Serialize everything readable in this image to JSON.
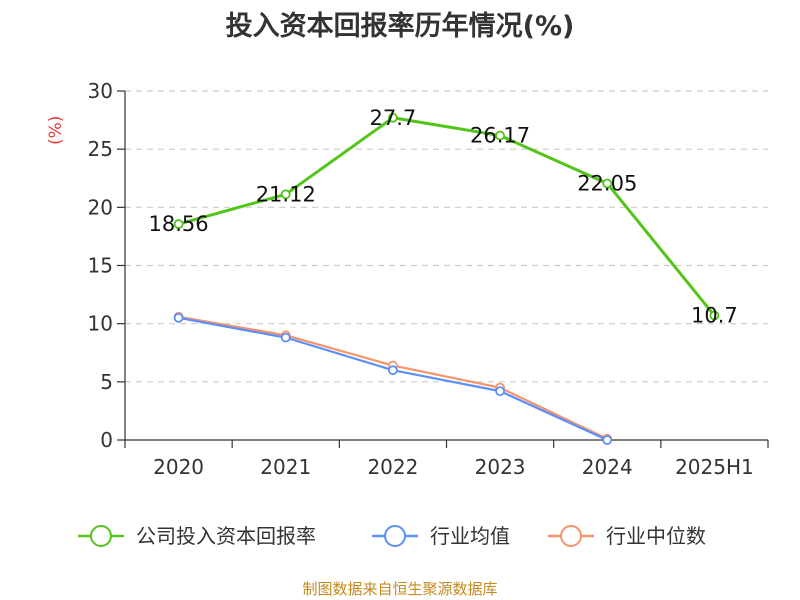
{
  "title": "投入资本回报率历年情况(%)",
  "unit_label": "(%)",
  "source": "制图数据来自恒生聚源数据库",
  "chart_data": {
    "type": "line",
    "categories": [
      "2020",
      "2021",
      "2022",
      "2023",
      "2024",
      "2025H1"
    ],
    "ylim": [
      0,
      30
    ],
    "yticks": [
      "0",
      "5",
      "10",
      "15",
      "20",
      "25",
      "30"
    ],
    "grid": true,
    "legend_position": "bottom",
    "series": [
      {
        "name": "公司投入资本回报率",
        "color": "#52c41a",
        "values": [
          18.56,
          21.12,
          27.7,
          26.17,
          22.05,
          10.7
        ],
        "labels": [
          "18.56",
          "21.12",
          "27.7",
          "26.17",
          "22.05",
          "10.7"
        ]
      },
      {
        "name": "行业均值",
        "color": "#5b8ff9",
        "values": [
          10.5,
          8.8,
          6.0,
          4.2,
          0.0,
          null
        ]
      },
      {
        "name": "行业中位数",
        "color": "#f6936b",
        "values": [
          10.6,
          9.0,
          6.4,
          4.5,
          0.1,
          null
        ]
      }
    ]
  }
}
